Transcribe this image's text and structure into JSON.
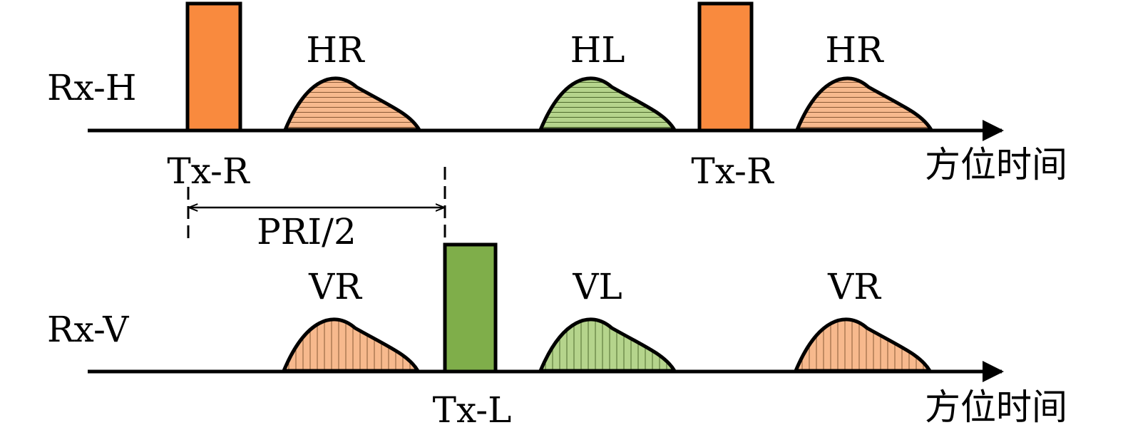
{
  "rows": {
    "h": {
      "row_label": "Rx-H",
      "axis_label": "方位时间",
      "tx_labels": [
        "Tx-R",
        "Tx-R"
      ],
      "echo_labels": [
        "HR",
        "HL",
        "HR"
      ]
    },
    "v": {
      "row_label": "Rx-V",
      "axis_label": "方位时间",
      "tx_labels": [
        "Tx-L"
      ],
      "echo_labels": [
        "VR",
        "VL",
        "VR"
      ]
    }
  },
  "interval_label": "PRI/2",
  "colors": {
    "tx_r": "#F98A3E",
    "tx_l": "#7FAE4A",
    "echo_r": "#F7B98D",
    "echo_l": "#B5D48C",
    "stroke": "#000000"
  },
  "hatch": {
    "HR": "horizontal",
    "HL": "horizontal",
    "VR": "vertical",
    "VL": "vertical"
  }
}
